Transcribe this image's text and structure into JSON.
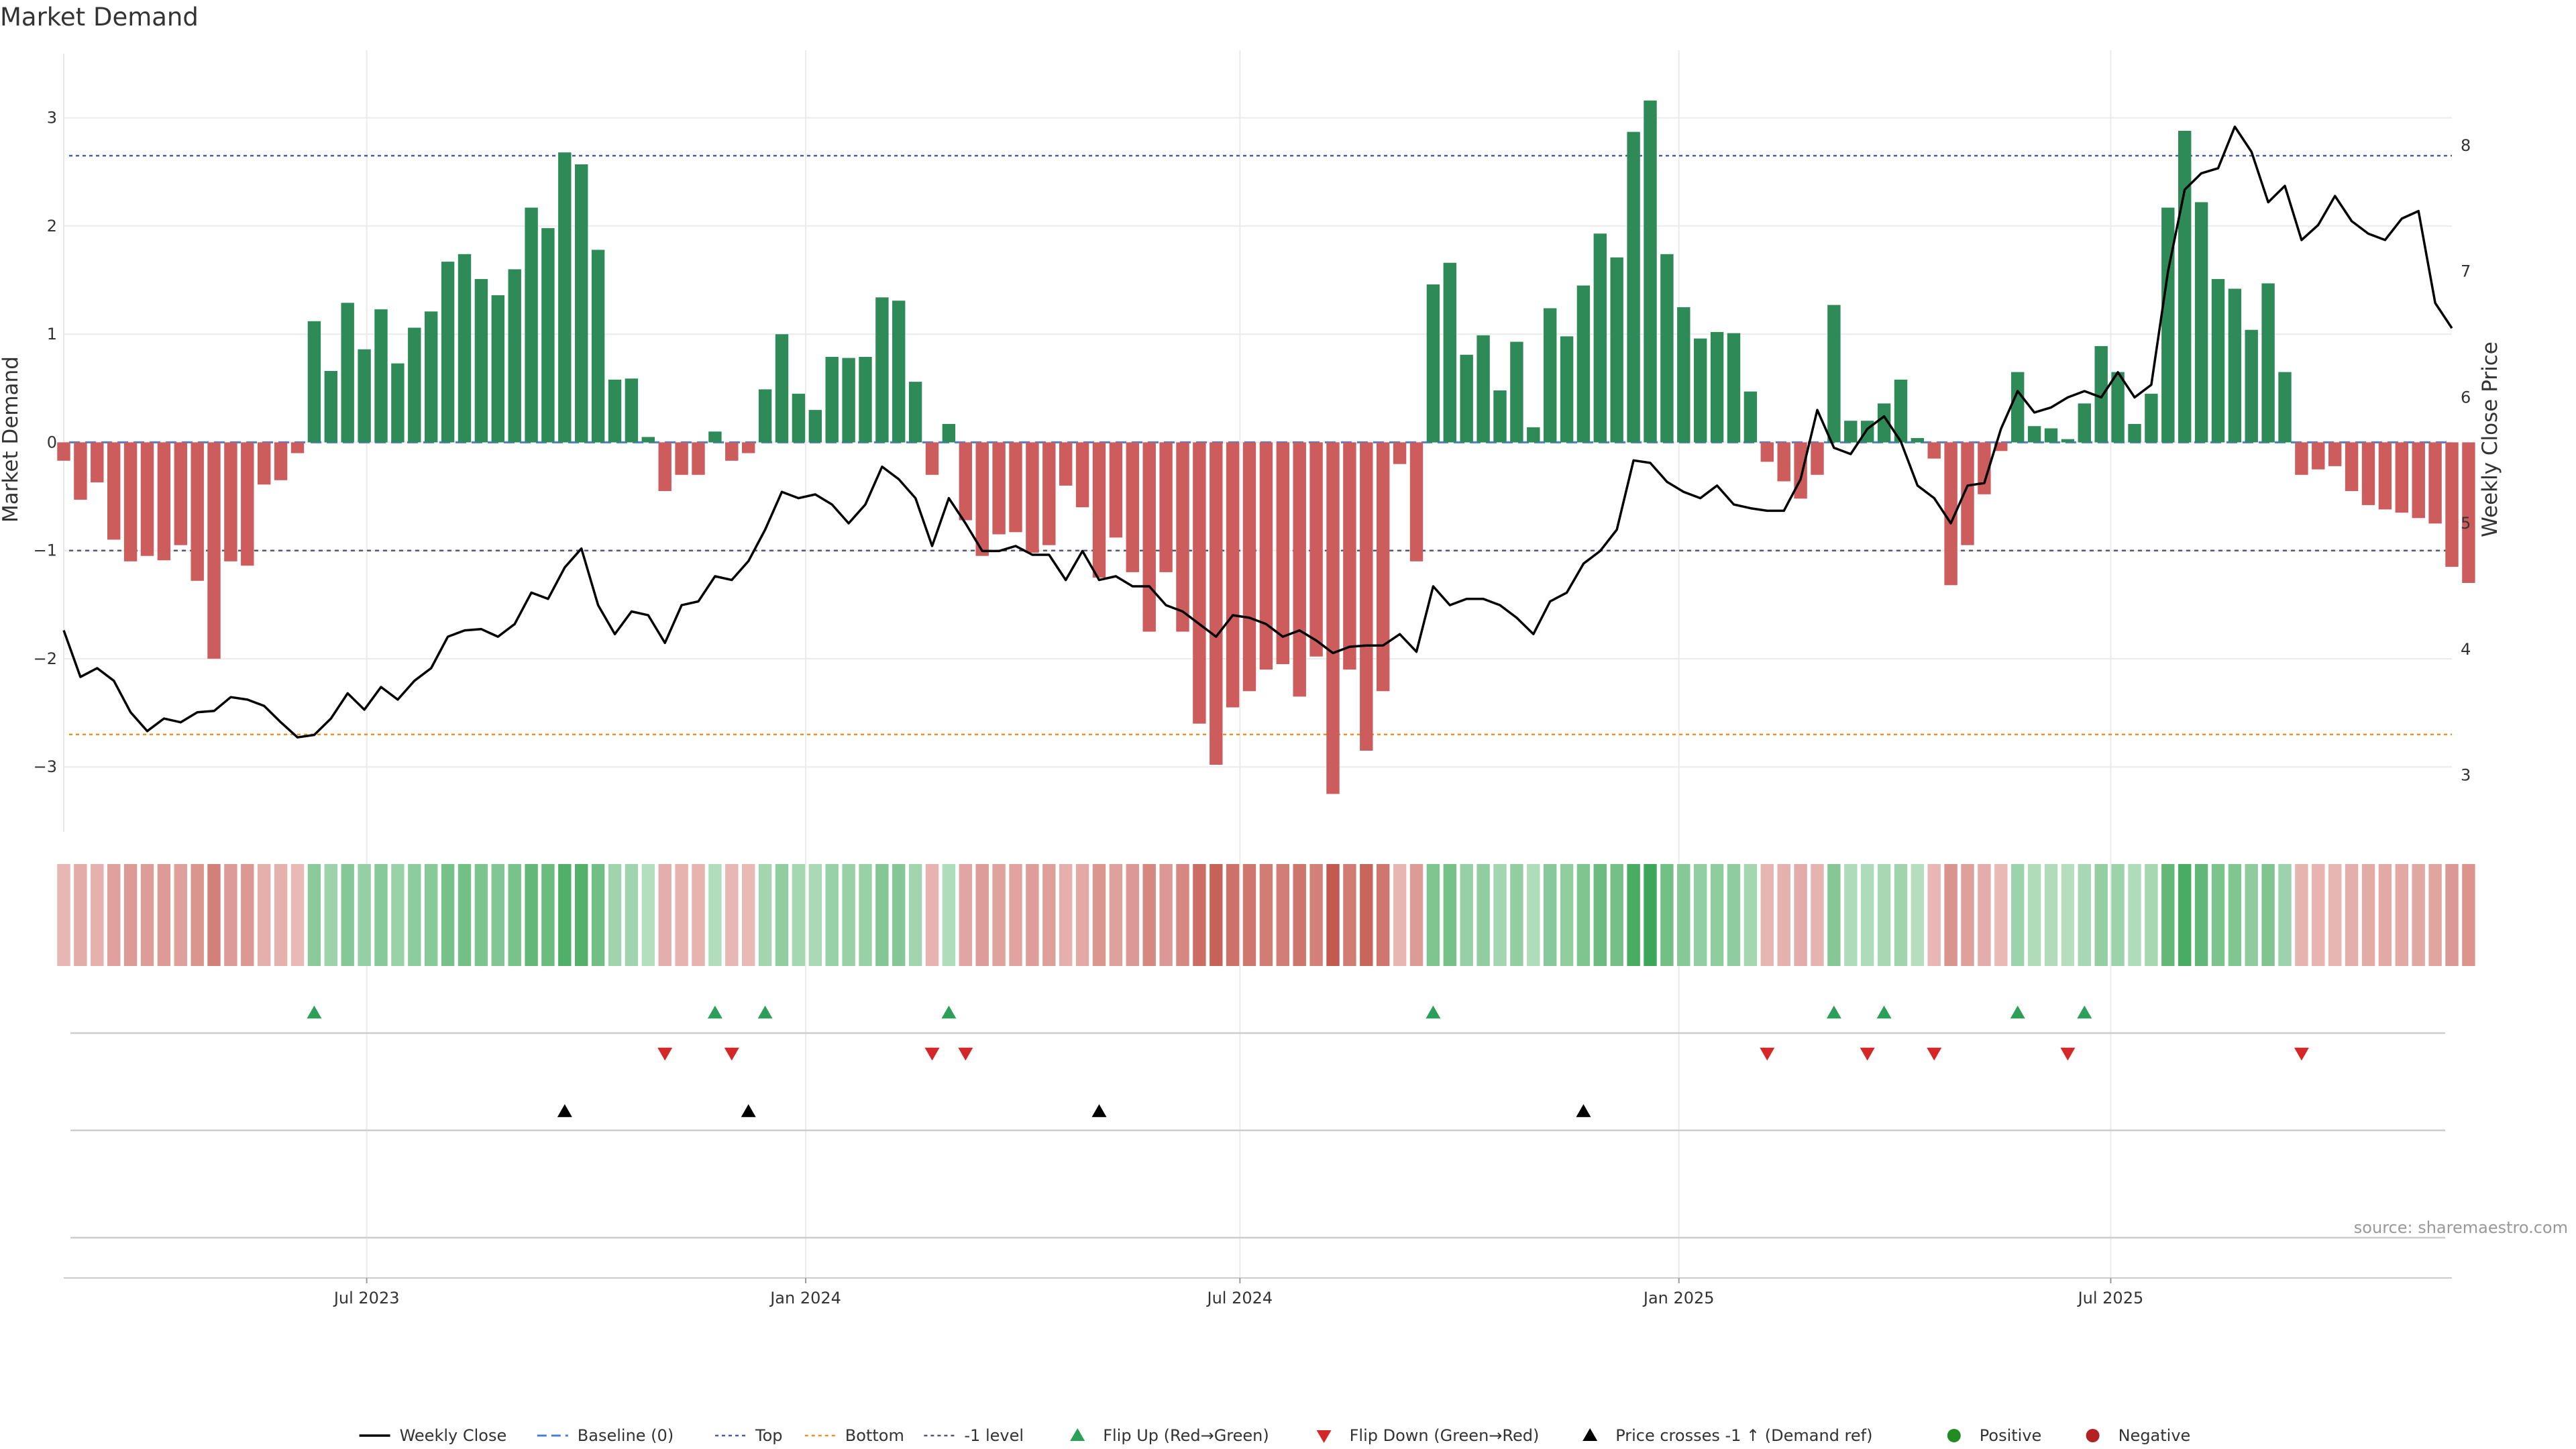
{
  "chart_data": {
    "type": "bar",
    "title": "Market Demand",
    "ylabel": "Market Demand",
    "y2label": "Weekly Close Price",
    "ylim": [
      -3.6,
      3.5
    ],
    "y2lim": [
      2.55,
      8.65
    ],
    "yticks": [
      -3,
      -2,
      -1,
      0,
      1,
      2,
      3
    ],
    "y2ticks": [
      3,
      4,
      5,
      6,
      7,
      8
    ],
    "x_range": [
      "2023-02-24",
      "2025-11-21"
    ],
    "x_ticks": [
      {
        "date": "2023-07-01",
        "label": "Jul 2023"
      },
      {
        "date": "2024-01-01",
        "label": "Jan 2024"
      },
      {
        "date": "2024-07-01",
        "label": "Jul 2024"
      },
      {
        "date": "2025-01-01",
        "label": "Jan 2025"
      },
      {
        "date": "2025-07-01",
        "label": "Jul 2025"
      }
    ],
    "start_date": "2023-02-24",
    "interval_days": 7,
    "reference_lines": {
      "top": 2.65,
      "baseline": 0,
      "bottom": -2.7,
      "minus_one": -1
    },
    "colors": {
      "positive": "#2e8b57",
      "negative": "#cd5c5c",
      "price": "#000000",
      "top": "#4b5cab",
      "baseline": "#4a7fd0",
      "bottom": "#e8922a",
      "minus_one": "#555577",
      "flip_up": "#2ca05a",
      "flip_down": "#d62728",
      "cross": "#000000",
      "grid": "#ebebeb"
    },
    "series": [
      {
        "name": "Market Demand",
        "values": [
          -0.17,
          -0.53,
          -0.37,
          -0.9,
          -1.1,
          -1.05,
          -1.09,
          -0.95,
          -1.28,
          -2.0,
          -1.1,
          -1.14,
          -0.39,
          -0.35,
          -0.1,
          1.12,
          0.66,
          1.29,
          0.86,
          1.23,
          0.73,
          1.06,
          1.21,
          1.67,
          1.74,
          1.51,
          1.36,
          1.6,
          2.17,
          1.98,
          2.68,
          2.57,
          1.78,
          0.58,
          0.59,
          0.05,
          -0.45,
          -0.3,
          -0.3,
          0.1,
          -0.17,
          -0.1,
          0.49,
          1.0,
          0.45,
          0.3,
          0.79,
          0.78,
          0.79,
          1.34,
          1.31,
          0.56,
          -0.3,
          0.17,
          -0.72,
          -1.05,
          -0.85,
          -0.83,
          -1.02,
          -0.95,
          -0.4,
          -0.6,
          -1.25,
          -0.88,
          -1.2,
          -1.75,
          -1.2,
          -1.75,
          -2.6,
          -2.98,
          -2.45,
          -2.3,
          -2.1,
          -2.05,
          -2.35,
          -1.98,
          -3.25,
          -2.1,
          -2.85,
          -2.3,
          -0.2,
          -1.1,
          1.46,
          1.66,
          0.81,
          0.99,
          0.48,
          0.93,
          0.14,
          1.24,
          0.98,
          1.45,
          1.93,
          1.71,
          2.87,
          3.16,
          1.74,
          1.25,
          0.96,
          1.02,
          1.01,
          0.47,
          -0.18,
          -0.36,
          -0.52,
          -0.3,
          1.27,
          0.2,
          0.2,
          0.36,
          0.58,
          0.04,
          -0.15,
          -1.32,
          -0.95,
          -0.48,
          -0.08,
          0.65,
          0.15,
          0.13,
          0.03,
          0.36,
          0.89,
          0.65,
          0.17,
          0.45,
          2.17,
          2.88,
          2.22,
          1.51,
          1.42,
          1.04,
          1.47,
          0.65,
          -0.3,
          -0.25,
          -0.22,
          -0.45,
          -0.58,
          -0.62,
          -0.65,
          -0.7,
          -0.75,
          -1.15,
          -1.3
        ]
      },
      {
        "name": "Weekly Close",
        "values": [
          4.15,
          3.78,
          3.85,
          3.75,
          3.5,
          3.35,
          3.45,
          3.42,
          3.5,
          3.51,
          3.62,
          3.6,
          3.55,
          3.42,
          3.3,
          3.32,
          3.45,
          3.65,
          3.52,
          3.7,
          3.6,
          3.75,
          3.85,
          4.1,
          4.15,
          4.16,
          4.1,
          4.2,
          4.45,
          4.4,
          4.65,
          4.8,
          4.35,
          4.12,
          4.3,
          4.27,
          4.05,
          4.35,
          4.38,
          4.58,
          4.55,
          4.7,
          4.95,
          5.25,
          5.2,
          5.23,
          5.15,
          5.0,
          5.15,
          5.45,
          5.35,
          5.2,
          4.82,
          5.2,
          5.0,
          4.78,
          4.78,
          4.82,
          4.75,
          4.75,
          4.55,
          4.78,
          4.55,
          4.58,
          4.5,
          4.5,
          4.35,
          4.3,
          4.2,
          4.1,
          4.27,
          4.25,
          4.2,
          4.1,
          4.15,
          4.07,
          3.97,
          4.02,
          4.03,
          4.03,
          4.12,
          3.98,
          4.5,
          4.35,
          4.4,
          4.4,
          4.35,
          4.25,
          4.12,
          4.38,
          4.45,
          4.68,
          4.78,
          4.95,
          5.5,
          5.48,
          5.33,
          5.25,
          5.2,
          5.3,
          5.15,
          5.12,
          5.1,
          5.1,
          5.35,
          5.9,
          5.6,
          5.55,
          5.75,
          5.85,
          5.65,
          5.3,
          5.2,
          5.0,
          5.3,
          5.32,
          5.75,
          6.05,
          5.88,
          5.92,
          6.0,
          6.05,
          6.0,
          6.2,
          6.0,
          6.1,
          7.0,
          7.65,
          7.78,
          7.82,
          8.15,
          7.95,
          7.55,
          7.68,
          7.25,
          7.37,
          7.6,
          7.4,
          7.3,
          7.25,
          7.42,
          7.48,
          6.75,
          6.55
        ]
      }
    ],
    "flips_up_indices": [
      15,
      39,
      42,
      53,
      82,
      106,
      109,
      117,
      121
    ],
    "flips_down_indices": [
      36,
      40,
      52,
      54,
      102,
      108,
      112,
      120,
      134
    ],
    "price_cross_indices": [
      30,
      41,
      62,
      91
    ],
    "legend": {
      "placement": "bottom-center",
      "entries": [
        {
          "label": "Weekly Close",
          "kind": "line",
          "color": "#000000"
        },
        {
          "label": "Baseline (0)",
          "kind": "dash",
          "color": "#4a7fd0"
        },
        {
          "label": "Top",
          "kind": "dot",
          "color": "#4b5cab"
        },
        {
          "label": "Bottom",
          "kind": "dot",
          "color": "#e8922a"
        },
        {
          "label": "-1 level",
          "kind": "dot",
          "color": "#555577"
        },
        {
          "label": "Flip Up (Red→Green)",
          "kind": "tri-up",
          "color": "#2ca05a"
        },
        {
          "label": "Flip Down (Green→Red)",
          "kind": "tri-down",
          "color": "#d62728"
        },
        {
          "label": "Price crosses -1 ↑ (Demand ref)",
          "kind": "tri-up",
          "color": "#000000"
        },
        {
          "label": "Positive",
          "kind": "circle",
          "color": "#228b22"
        },
        {
          "label": "Negative",
          "kind": "circle",
          "color": "#b22222"
        }
      ]
    },
    "source": "source: sharemaestro.com"
  }
}
